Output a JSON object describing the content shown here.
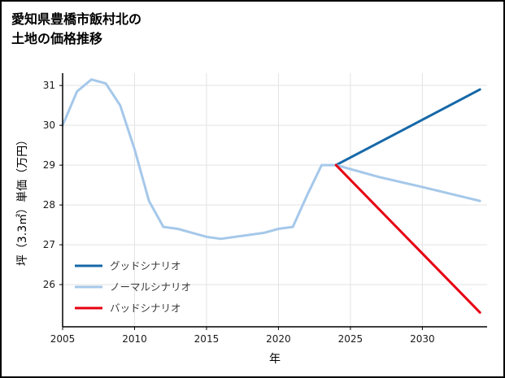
{
  "title": {
    "line1": "愛知県豊橋市飯村北の",
    "line2": "土地の価格推移"
  },
  "chart_data": {
    "type": "line",
    "title": "愛知県豊橋市飯村北の土地の価格推移",
    "xlabel": "年",
    "ylabel": "坪（3.3㎡）単価（万円）",
    "xlim": [
      2005,
      2034.5
    ],
    "ylim": [
      24.94,
      31.31
    ],
    "xticks": [
      2005,
      2010,
      2015,
      2020,
      2025,
      2030
    ],
    "yticks": [
      26,
      27,
      28,
      29,
      30,
      31
    ],
    "grid": true,
    "grid_color": "#e3e3e3",
    "axis_color": "#000000",
    "tick_label_color": "#1a1a1a",
    "legend_position": "lower-left",
    "legend_text_color": "#3c3c3c",
    "series": [
      {
        "key": "good",
        "name": "グッドシナリオ",
        "color": "#1668a8",
        "width": 3,
        "points": [
          [
            2024,
            29.0
          ],
          [
            2034,
            30.9
          ]
        ]
      },
      {
        "key": "normal",
        "name": "ノーマルシナリオ",
        "color": "#a5c8ea",
        "width": 3,
        "points": [
          [
            2005,
            30.0
          ],
          [
            2006,
            30.85
          ],
          [
            2007,
            31.15
          ],
          [
            2008,
            31.05
          ],
          [
            2009,
            30.5
          ],
          [
            2010,
            29.4
          ],
          [
            2011,
            28.1
          ],
          [
            2012,
            27.45
          ],
          [
            2013,
            27.4
          ],
          [
            2014,
            27.3
          ],
          [
            2015,
            27.2
          ],
          [
            2016,
            27.15
          ],
          [
            2017,
            27.2
          ],
          [
            2018,
            27.25
          ],
          [
            2019,
            27.3
          ],
          [
            2020,
            27.4
          ],
          [
            2021,
            27.45
          ],
          [
            2022,
            28.25
          ],
          [
            2023,
            29.0
          ],
          [
            2024,
            29.0
          ],
          [
            2027,
            28.7
          ],
          [
            2030,
            28.45
          ],
          [
            2034,
            28.1
          ]
        ]
      },
      {
        "key": "bad",
        "name": "バッドシナリオ",
        "color": "#e60012",
        "width": 3,
        "points": [
          [
            2024,
            29.0
          ],
          [
            2034,
            25.3
          ]
        ]
      }
    ]
  }
}
